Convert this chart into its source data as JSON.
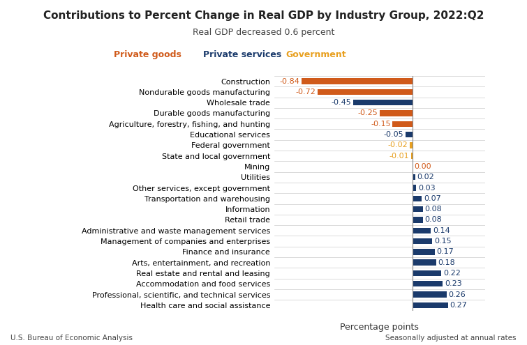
{
  "title": "Contributions to Percent Change in Real GDP by Industry Group, 2022:Q2",
  "subtitle": "Real GDP decreased 0.6 percent",
  "xlabel": "Percentage points",
  "footer_left": "U.S. Bureau of Economic Analysis",
  "footer_right": "Seasonally adjusted at annual rates",
  "categories": [
    "Construction",
    "Nondurable goods manufacturing",
    "Wholesale trade",
    "Durable goods manufacturing",
    "Agriculture, forestry, fishing, and hunting",
    "Educational services",
    "Federal government",
    "State and local government",
    "Mining",
    "Utilities",
    "Other services, except government",
    "Transportation and warehousing",
    "Information",
    "Retail trade",
    "Administrative and waste management services",
    "Management of companies and enterprises",
    "Finance and insurance",
    "Arts, entertainment, and recreation",
    "Real estate and rental and leasing",
    "Accommodation and food services",
    "Professional, scientific, and technical services",
    "Health care and social assistance"
  ],
  "values": [
    -0.84,
    -0.72,
    -0.45,
    -0.25,
    -0.15,
    -0.05,
    -0.02,
    -0.01,
    0.0,
    0.02,
    0.03,
    0.07,
    0.08,
    0.08,
    0.14,
    0.15,
    0.17,
    0.18,
    0.22,
    0.23,
    0.26,
    0.27
  ],
  "bar_types": [
    "private_goods",
    "private_goods",
    "private_services",
    "private_goods",
    "private_goods",
    "private_services",
    "government",
    "government",
    "private_goods",
    "private_services",
    "private_services",
    "private_services",
    "private_services",
    "private_services",
    "private_services",
    "private_services",
    "private_services",
    "private_services",
    "private_services",
    "private_services",
    "private_services",
    "private_services"
  ],
  "colors": {
    "private_goods": "#D05A1A",
    "private_services": "#1A3A6B",
    "government": "#E8A020"
  },
  "legend_labels": [
    "Private goods",
    "Private services",
    "Government"
  ],
  "legend_keys": [
    "private_goods",
    "private_services",
    "government"
  ],
  "legend_colors": [
    "#D05A1A",
    "#1A3A6B",
    "#E8A020"
  ],
  "xlim": [
    -1.05,
    0.55
  ],
  "background_color": "#ffffff",
  "grid_color": "#cccccc",
  "title_fontsize": 11,
  "subtitle_fontsize": 9,
  "label_fontsize": 8,
  "value_fontsize": 8,
  "bar_height": 0.55
}
